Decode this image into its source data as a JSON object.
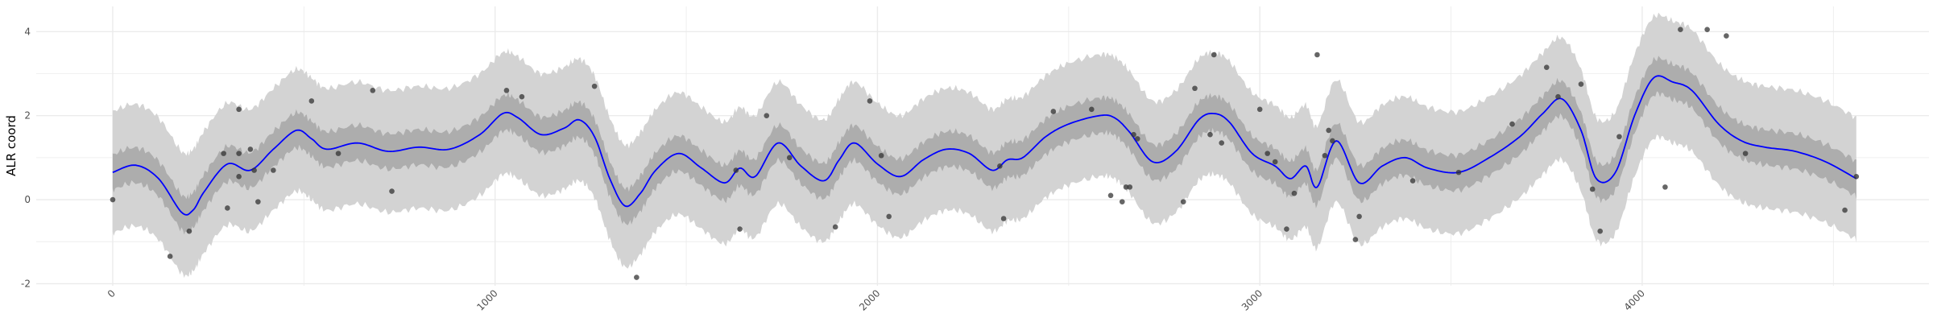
{
  "chart_data": {
    "type": "line",
    "title": "",
    "xlabel": "",
    "ylabel": "ALR coord",
    "xlim": [
      -200,
      4750
    ],
    "ylim": [
      -2.05,
      4.6
    ],
    "x_ticks": [
      0,
      1000,
      2000,
      3000,
      4000
    ],
    "x_tick_labels": [
      "0",
      "1000",
      "2000",
      "3000",
      "4000"
    ],
    "y_ticks": [
      -2,
      0,
      2,
      4
    ],
    "y_tick_labels": [
      "-2",
      "0",
      "2",
      "4"
    ],
    "grid": true,
    "legend": "none",
    "colors": {
      "line": "#0000ff",
      "inner_band": "#adadad",
      "outer_band": "#d3d3d3",
      "points": "#333333",
      "grid": "#ebebeb"
    },
    "line": {
      "x": [
        0,
        60,
        120,
        180,
        210,
        240,
        300,
        360,
        420,
        480,
        520,
        560,
        640,
        720,
        800,
        880,
        960,
        1020,
        1060,
        1120,
        1180,
        1220,
        1260,
        1300,
        1340,
        1380,
        1420,
        1480,
        1540,
        1600,
        1640,
        1680,
        1740,
        1800,
        1860,
        1900,
        1940,
        2000,
        2060,
        2120,
        2180,
        2240,
        2300,
        2340,
        2380,
        2440,
        2500,
        2580,
        2620,
        2660,
        2720,
        2780,
        2840,
        2880,
        2920,
        2980,
        3040,
        3080,
        3120,
        3150,
        3200,
        3260,
        3320,
        3380,
        3440,
        3520,
        3600,
        3680,
        3740,
        3790,
        3840,
        3880,
        3930,
        3980,
        4030,
        4080,
        4130,
        4200,
        4260,
        4320,
        4400,
        4480,
        4560
      ],
      "y": [
        0.65,
        0.82,
        0.5,
        -0.3,
        -0.25,
        0.2,
        0.85,
        0.7,
        1.2,
        1.65,
        1.45,
        1.2,
        1.35,
        1.15,
        1.25,
        1.2,
        1.55,
        2.05,
        1.95,
        1.55,
        1.7,
        1.9,
        1.5,
        0.5,
        -0.15,
        0.15,
        0.7,
        1.1,
        0.75,
        0.4,
        0.75,
        0.55,
        1.35,
        0.8,
        0.45,
        0.95,
        1.35,
        0.85,
        0.55,
        0.95,
        1.2,
        1.1,
        0.7,
        0.95,
        1.0,
        1.5,
        1.8,
        2.0,
        1.95,
        1.6,
        0.9,
        1.15,
        1.9,
        2.05,
        1.85,
        1.1,
        0.8,
        0.5,
        0.8,
        0.3,
        1.4,
        0.4,
        0.8,
        1.0,
        0.75,
        0.65,
        1.0,
        1.5,
        2.05,
        2.4,
        1.65,
        0.5,
        0.65,
        2.0,
        2.9,
        2.8,
        2.6,
        1.8,
        1.4,
        1.25,
        1.15,
        0.9,
        0.5
      ],
      "inner_band_width": 0.42,
      "outer_band_width": 1.45
    },
    "points": {
      "x": [
        0,
        150,
        200,
        290,
        300,
        330,
        330,
        330,
        360,
        370,
        380,
        420,
        520,
        590,
        680,
        730,
        1030,
        1070,
        1260,
        1370,
        1630,
        1640,
        1710,
        1770,
        1890,
        1980,
        2010,
        2030,
        2320,
        2330,
        2460,
        2560,
        2610,
        2640,
        2650,
        2660,
        2670,
        2680,
        2800,
        2830,
        2870,
        2880,
        2900,
        3000,
        3020,
        3040,
        3070,
        3090,
        3150,
        3170,
        3180,
        3190,
        3250,
        3260,
        3400,
        3520,
        3660,
        3750,
        3780,
        3840,
        3870,
        3890,
        3940,
        4060,
        4100,
        4170,
        4220,
        4270,
        4530,
        4560
      ],
      "y": [
        0,
        -1.35,
        -0.75,
        1.1,
        -0.2,
        0.55,
        1.1,
        2.15,
        1.2,
        0.7,
        -0.05,
        0.7,
        2.35,
        1.1,
        2.6,
        0.2,
        2.6,
        2.45,
        2.7,
        -1.85,
        0.7,
        -0.7,
        2.0,
        1.0,
        -0.65,
        2.35,
        1.05,
        -0.4,
        0.8,
        -0.45,
        2.1,
        2.15,
        0.1,
        -0.05,
        0.3,
        0.3,
        1.55,
        1.45,
        -0.05,
        2.65,
        1.55,
        3.45,
        1.35,
        2.15,
        1.1,
        0.9,
        -0.7,
        0.15,
        3.45,
        1.05,
        1.65,
        1.4,
        -0.95,
        -0.4,
        0.45,
        0.65,
        1.8,
        3.15,
        2.45,
        2.75,
        0.25,
        -0.75,
        1.5,
        0.3,
        4.05,
        4.05,
        3.9,
        1.1,
        -0.25,
        0.55
      ]
    }
  }
}
